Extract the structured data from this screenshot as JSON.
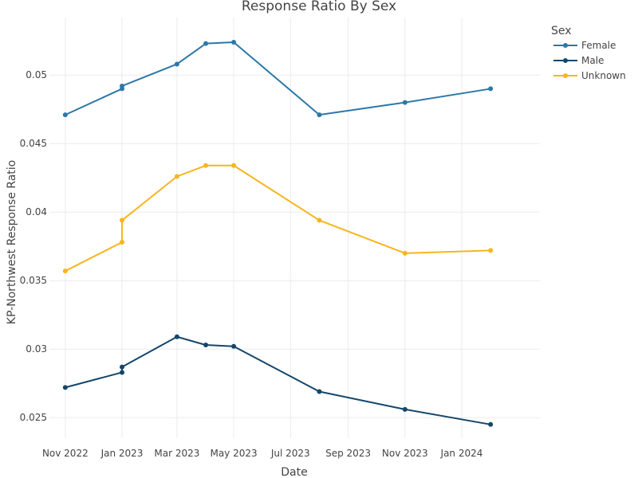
{
  "chart_data": {
    "type": "line",
    "title": "Response Ratio By Sex",
    "xlabel": "Date",
    "ylabel": "KP-Northwest Response Ratio",
    "x_ticks": [
      {
        "date": "2022-11-01",
        "label": "Nov 2022"
      },
      {
        "date": "2023-01-01",
        "label": "Jan 2023"
      },
      {
        "date": "2023-03-01",
        "label": "Mar 2023"
      },
      {
        "date": "2023-05-01",
        "label": "May 2023"
      },
      {
        "date": "2023-07-01",
        "label": "Jul 2023"
      },
      {
        "date": "2023-09-01",
        "label": "Sep 2023"
      },
      {
        "date": "2023-11-01",
        "label": "Nov 2023"
      },
      {
        "date": "2024-01-01",
        "label": "Jan 2024"
      }
    ],
    "xlim": [
      "2022-10-15",
      "2024-03-25"
    ],
    "y_ticks": [
      {
        "value": 0.025,
        "label": "0.025"
      },
      {
        "value": 0.03,
        "label": "0.03"
      },
      {
        "value": 0.035,
        "label": "0.035"
      },
      {
        "value": 0.04,
        "label": "0.04"
      },
      {
        "value": 0.045,
        "label": "0.045"
      },
      {
        "value": 0.05,
        "label": "0.05"
      }
    ],
    "ylim": [
      0.0235,
      0.0542
    ],
    "grid": true,
    "legend": {
      "title": "Sex",
      "position": "top-right"
    },
    "series": [
      {
        "name": "Female",
        "color": "#2c78a8",
        "points": [
          {
            "x": "2022-11-01",
            "y": 0.0471
          },
          {
            "x": "2023-01-01",
            "y": 0.049
          },
          {
            "x": "2023-01-01",
            "y": 0.0492
          },
          {
            "x": "2023-03-01",
            "y": 0.0508
          },
          {
            "x": "2023-04-01",
            "y": 0.0523
          },
          {
            "x": "2023-05-01",
            "y": 0.0524
          },
          {
            "x": "2023-08-01",
            "y": 0.0471
          },
          {
            "x": "2023-11-01",
            "y": 0.048
          },
          {
            "x": "2024-02-01",
            "y": 0.049
          }
        ]
      },
      {
        "name": "Male",
        "color": "#14466b",
        "points": [
          {
            "x": "2022-11-01",
            "y": 0.0272
          },
          {
            "x": "2023-01-01",
            "y": 0.0283
          },
          {
            "x": "2023-01-01",
            "y": 0.0287
          },
          {
            "x": "2023-03-01",
            "y": 0.0309
          },
          {
            "x": "2023-04-01",
            "y": 0.0303
          },
          {
            "x": "2023-05-01",
            "y": 0.0302
          },
          {
            "x": "2023-08-01",
            "y": 0.0269
          },
          {
            "x": "2023-11-01",
            "y": 0.0256
          },
          {
            "x": "2024-02-01",
            "y": 0.0245
          }
        ]
      },
      {
        "name": "Unknown",
        "color": "#f7b51e",
        "points": [
          {
            "x": "2022-11-01",
            "y": 0.0357
          },
          {
            "x": "2023-01-01",
            "y": 0.0378
          },
          {
            "x": "2023-01-01",
            "y": 0.0394
          },
          {
            "x": "2023-03-01",
            "y": 0.0426
          },
          {
            "x": "2023-04-01",
            "y": 0.0434
          },
          {
            "x": "2023-05-01",
            "y": 0.0434
          },
          {
            "x": "2023-08-01",
            "y": 0.0394
          },
          {
            "x": "2023-11-01",
            "y": 0.037
          },
          {
            "x": "2024-02-01",
            "y": 0.0372
          }
        ]
      }
    ]
  }
}
